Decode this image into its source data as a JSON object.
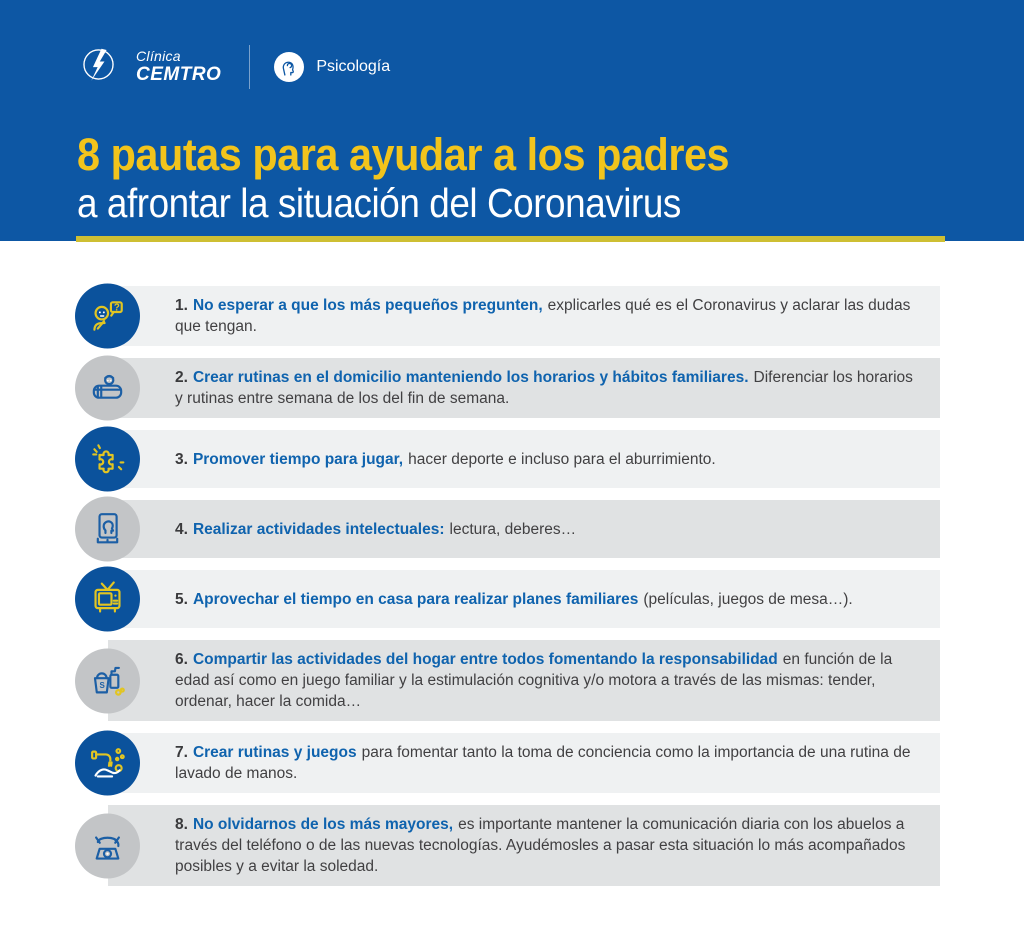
{
  "header": {
    "brand": {
      "line1": "Clínica",
      "line2": "CEMTRO"
    },
    "department": "Psicología",
    "title": "8 pautas para ayudar a los padres",
    "subtitle": "a afrontar la situación del Coronavirus"
  },
  "colors": {
    "header_bg": "#0d57a4",
    "title_yellow": "#f2c41c",
    "underline_yellow": "#cebf33",
    "lead_blue": "#0f63ae",
    "band_light": "#eff1f2",
    "band_dark": "#e0e2e3",
    "circle_blue": "#0b529c",
    "circle_gray": "#c3c5c7",
    "icon_yellow": "#e2c522",
    "icon_blue": "#1c5fa5",
    "body_text": "#414042"
  },
  "list": {
    "items": [
      {
        "number": "1.",
        "lead": "No esperar a que los más pequeños pregunten,",
        "rest": "explicarles qué es el Coronavirus y aclarar las dudas que tengan.",
        "icon": "child-question-icon",
        "style": "blue",
        "band": "light"
      },
      {
        "number": "2.",
        "lead": "Crear rutinas en el domicilio manteniendo los horarios y hábitos familiares.",
        "rest": "Diferenciar los horarios y rutinas entre semana de los del fin de semana.",
        "icon": "crib-icon",
        "style": "gray",
        "band": "dark"
      },
      {
        "number": "3.",
        "lead": "Promover tiempo para jugar,",
        "rest": "hacer deporte e incluso para el aburrimiento.",
        "icon": "puzzle-icon",
        "style": "blue",
        "band": "light"
      },
      {
        "number": "4.",
        "lead": "Realizar actividades intelectuales:",
        "rest": "lectura, deberes…",
        "icon": "reading-book-icon",
        "style": "gray",
        "band": "dark"
      },
      {
        "number": "5.",
        "lead": "Aprovechar el tiempo en casa para realizar planes familiares",
        "rest": "(películas, juegos de mesa…).",
        "icon": "television-icon",
        "style": "blue",
        "band": "light"
      },
      {
        "number": "6.",
        "lead": "Compartir las actividades del hogar entre todos fomentando la responsabilidad",
        "rest": "en función de la edad así como en juego familiar y la estimulación cognitiva y/o motora a través de las mismas: tender, ordenar, hacer la comida…",
        "icon": "cleaning-supplies-icon",
        "style": "gray",
        "band": "dark"
      },
      {
        "number": "7.",
        "lead": "Crear rutinas y juegos",
        "rest": "para fomentar tanto la toma de conciencia como la importancia de una rutina de lavado de manos.",
        "icon": "hand-washing-icon",
        "style": "blue",
        "band": "light"
      },
      {
        "number": "8.",
        "lead": "No olvidarnos de los más mayores,",
        "rest": "es importante mantener la comunicación diaria con los abuelos a través del teléfono o de las nuevas tecnologías. Ayudémosles a pasar esta situación lo más acompañados posibles y a evitar la soledad.",
        "icon": "telephone-icon",
        "style": "gray",
        "band": "dark"
      }
    ]
  }
}
